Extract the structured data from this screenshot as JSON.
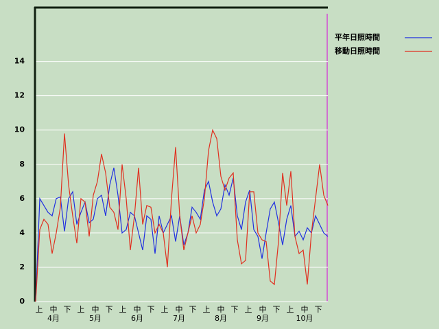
{
  "chart_data": {
    "type": "line",
    "x_tick_labels": [
      "上",
      "中",
      "下",
      "上",
      "中",
      "下",
      "上",
      "中",
      "下",
      "上",
      "中",
      "下",
      "上",
      "中",
      "下",
      "上",
      "中",
      "下",
      "上",
      "中",
      "下"
    ],
    "months": [
      "4月",
      "5月",
      "6月",
      "7月",
      "8月",
      "9月",
      "10月"
    ],
    "series": [
      {
        "name": "平年日照時間",
        "color": "#2030e0",
        "values": [
          0,
          6.0,
          5.6,
          5.2,
          5.0,
          6.0,
          6.1,
          4.1,
          6.0,
          6.4,
          4.5,
          5.2,
          5.8,
          4.6,
          4.8,
          6.0,
          6.2,
          5.0,
          6.8,
          7.8,
          6.2,
          4.0,
          4.2,
          5.2,
          5.0,
          4.0,
          3.0,
          5.0,
          4.8,
          2.8,
          5.0,
          4.0,
          4.5,
          5.0,
          3.5,
          5.0,
          3.3,
          4.0,
          5.5,
          5.2,
          4.8,
          6.5,
          7.0,
          5.8,
          5.0,
          5.4,
          6.8,
          6.2,
          7.2,
          5.0,
          4.2,
          5.8,
          6.5,
          4.2,
          3.8,
          2.5,
          4.0,
          5.4,
          5.8,
          4.6,
          3.3,
          4.8,
          5.6,
          3.8,
          4.1,
          3.6,
          4.3,
          4.0,
          5.0,
          4.5,
          4.0,
          3.8
        ]
      },
      {
        "name": "移動日照時間",
        "color": "#e03020",
        "values": [
          0,
          4.2,
          4.8,
          4.5,
          2.8,
          4.0,
          5.5,
          9.8,
          6.8,
          5.0,
          3.4,
          6.0,
          5.8,
          3.8,
          6.2,
          7.0,
          8.6,
          7.5,
          5.5,
          5.2,
          4.2,
          8.0,
          6.0,
          3.0,
          5.0,
          7.8,
          4.5,
          5.6,
          5.5,
          4.0,
          4.5,
          4.0,
          2.0,
          6.0,
          9.0,
          5.0,
          3.0,
          4.0,
          5.0,
          4.0,
          4.5,
          6.0,
          8.8,
          10.0,
          9.5,
          7.3,
          6.5,
          7.2,
          7.5,
          3.6,
          2.2,
          2.4,
          6.4,
          6.4,
          4.0,
          3.6,
          3.5,
          1.2,
          1.0,
          3.5,
          7.5,
          5.6,
          7.6,
          3.8,
          2.8,
          3.0,
          1.0,
          4.0,
          6.0,
          8.0,
          6.2,
          5.6
        ]
      }
    ],
    "ylim": [
      0,
      17.1
    ],
    "yticks": [
      0,
      2,
      4,
      6,
      8,
      10,
      12,
      14
    ],
    "grid": true
  }
}
